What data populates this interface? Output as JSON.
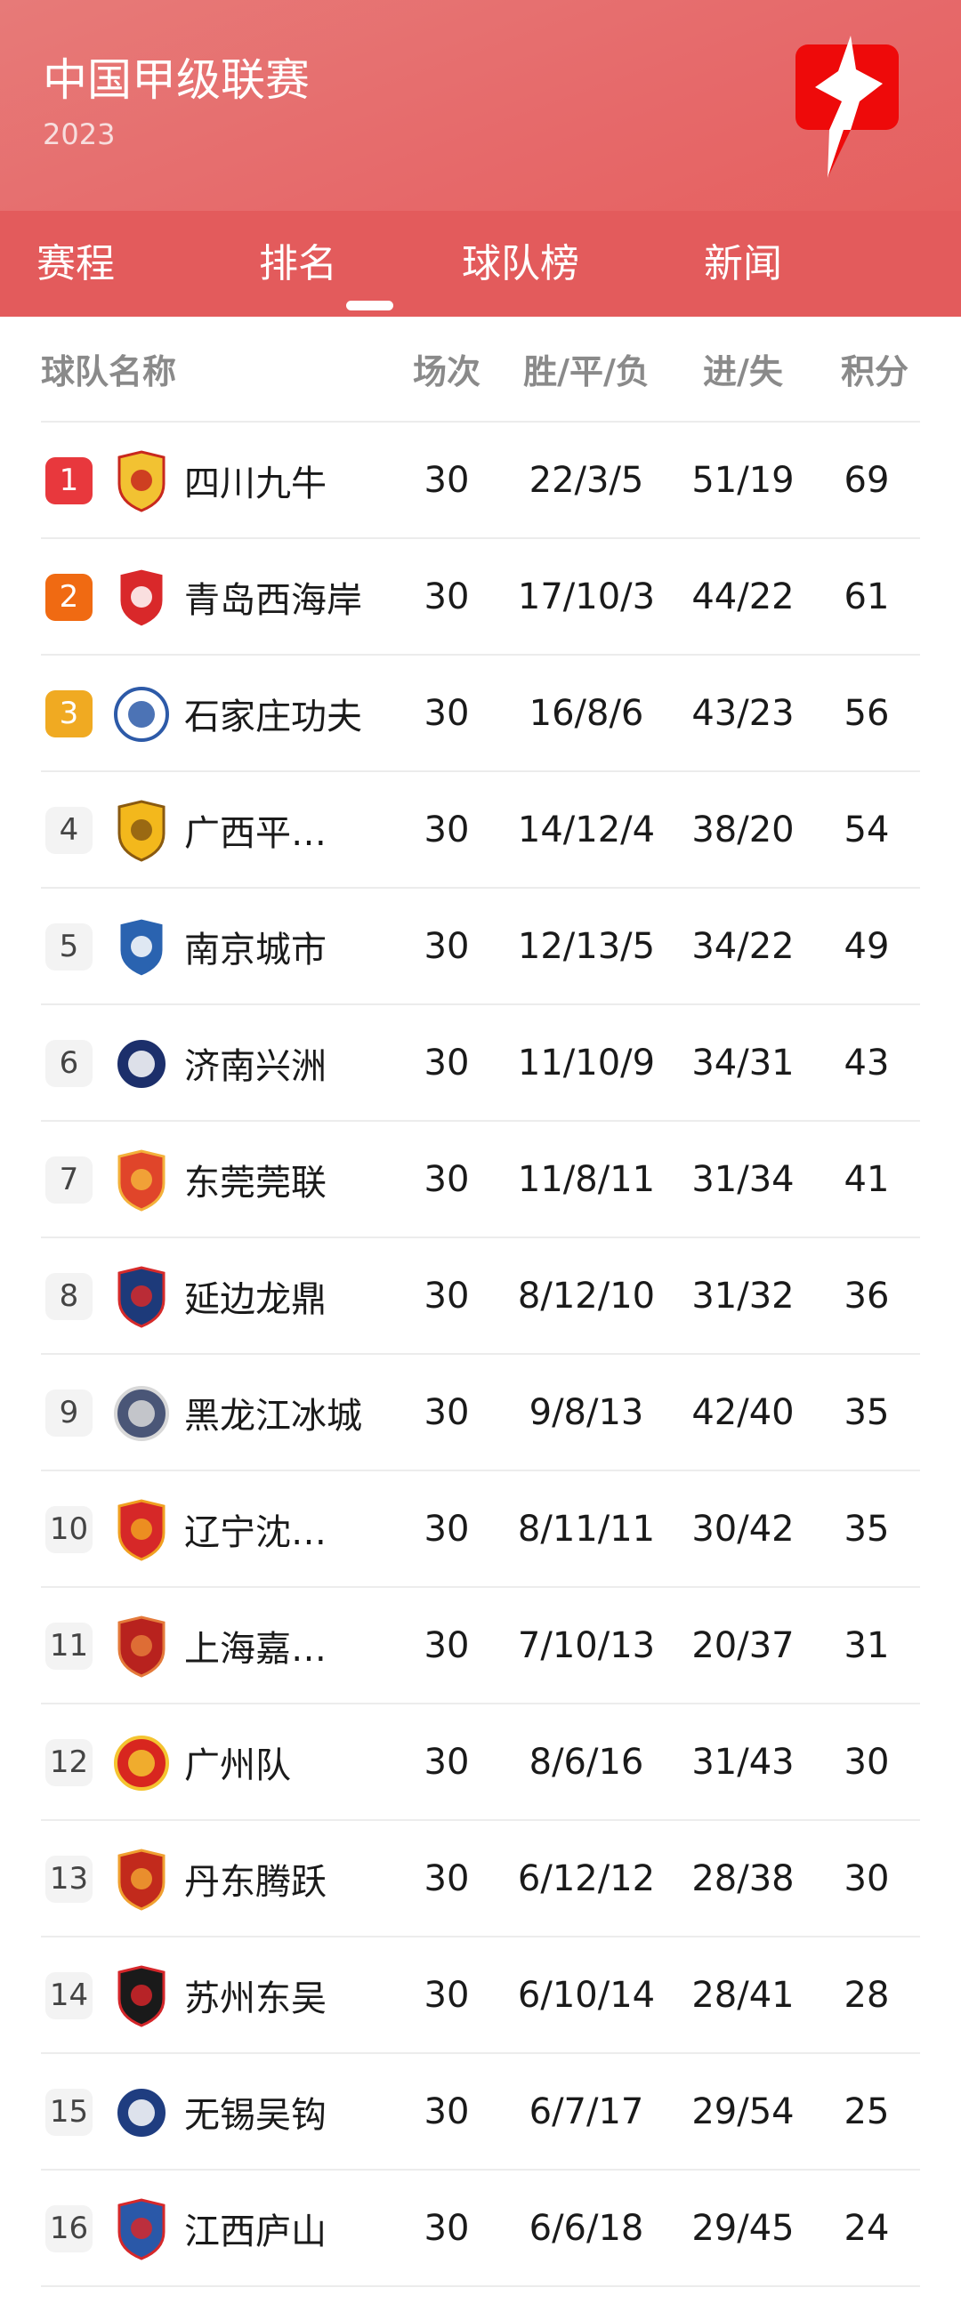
{
  "header": {
    "title": "中国甲级联赛",
    "year": "2023",
    "logo": "app-logo-icon"
  },
  "tabs": [
    {
      "label": "赛程"
    },
    {
      "label": "排名",
      "active": true
    },
    {
      "label": "球队榜"
    },
    {
      "label": "新闻"
    }
  ],
  "table": {
    "columns": {
      "team": "球队名称",
      "played": "场次",
      "wdl": "胜/平/负",
      "goals": "进/失",
      "points": "积分"
    },
    "rank_colors": {
      "1": "#e8383d",
      "2": "#f06a12",
      "3": "#f0aa22"
    },
    "rows": [
      {
        "rank": "1",
        "team": "四川九牛",
        "played": "30",
        "wdl": "22/3/5",
        "goals": "51/19",
        "points": "69",
        "c1": "#f2c232",
        "c2": "#c8281e"
      },
      {
        "rank": "2",
        "team": "青岛西海岸",
        "played": "30",
        "wdl": "17/10/3",
        "goals": "44/22",
        "points": "61",
        "c1": "#d9282a",
        "c2": "#ffffff"
      },
      {
        "rank": "3",
        "team": "石家庄功夫",
        "played": "30",
        "wdl": "16/8/6",
        "goals": "43/23",
        "points": "56",
        "c1": "#ffffff",
        "c2": "#2d5aa8"
      },
      {
        "rank": "4",
        "team": "广西平…",
        "played": "30",
        "wdl": "14/12/4",
        "goals": "38/20",
        "points": "54",
        "c1": "#f3b81c",
        "c2": "#8a5a10"
      },
      {
        "rank": "5",
        "team": "南京城市",
        "played": "30",
        "wdl": "12/13/5",
        "goals": "34/22",
        "points": "49",
        "c1": "#2a63b0",
        "c2": "#ffffff"
      },
      {
        "rank": "6",
        "team": "济南兴洲",
        "played": "30",
        "wdl": "11/10/9",
        "goals": "34/31",
        "points": "43",
        "c1": "#1c2f6b",
        "c2": "#ffffff"
      },
      {
        "rank": "7",
        "team": "东莞莞联",
        "played": "30",
        "wdl": "11/8/11",
        "goals": "31/34",
        "points": "41",
        "c1": "#e0452a",
        "c2": "#f3b13a"
      },
      {
        "rank": "8",
        "team": "延边龙鼎",
        "played": "30",
        "wdl": "8/12/10",
        "goals": "31/32",
        "points": "36",
        "c1": "#1d3a7a",
        "c2": "#d62a2a"
      },
      {
        "rank": "9",
        "team": "黑龙江冰城",
        "played": "30",
        "wdl": "9/8/13",
        "goals": "42/40",
        "points": "35",
        "c1": "#4a5677",
        "c2": "#d8d8d8"
      },
      {
        "rank": "10",
        "team": "辽宁沈…",
        "played": "30",
        "wdl": "8/11/11",
        "goals": "30/42",
        "points": "35",
        "c1": "#d62828",
        "c2": "#f0a020"
      },
      {
        "rank": "11",
        "team": "上海嘉…",
        "played": "30",
        "wdl": "7/10/13",
        "goals": "20/37",
        "points": "31",
        "c1": "#b8221e",
        "c2": "#e47a3a"
      },
      {
        "rank": "12",
        "team": "广州队",
        "played": "30",
        "wdl": "8/6/16",
        "goals": "31/43",
        "points": "30",
        "c1": "#d8261f",
        "c2": "#f4c430"
      },
      {
        "rank": "13",
        "team": "丹东腾跃",
        "played": "30",
        "wdl": "6/12/12",
        "goals": "28/38",
        "points": "30",
        "c1": "#c22a1c",
        "c2": "#f0a030"
      },
      {
        "rank": "14",
        "team": "苏州东吴",
        "played": "30",
        "wdl": "6/10/14",
        "goals": "28/41",
        "points": "28",
        "c1": "#1a1a1a",
        "c2": "#d4262a"
      },
      {
        "rank": "15",
        "team": "无锡吴钩",
        "played": "30",
        "wdl": "6/7/17",
        "goals": "29/54",
        "points": "25",
        "c1": "#1f3d80",
        "c2": "#ffffff"
      },
      {
        "rank": "16",
        "team": "江西庐山",
        "played": "30",
        "wdl": "6/6/18",
        "goals": "29/45",
        "points": "24",
        "c1": "#2a58a8",
        "c2": "#d6282a"
      }
    ]
  }
}
